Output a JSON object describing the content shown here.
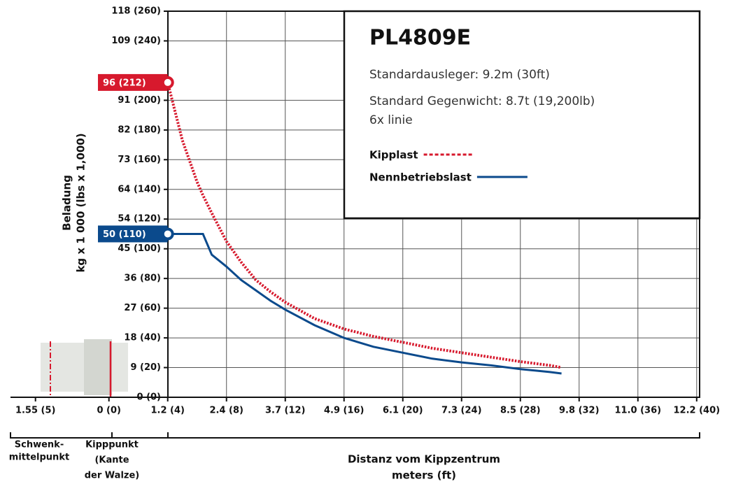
{
  "chart_data": {
    "type": "line",
    "title": "PL4809E",
    "subtitle": [
      "Standardausleger: 9.2m (30ft)",
      "Standard Gegenwicht: 8.7t (19,200lb)",
      "6x linie"
    ],
    "x_label": [
      "Distanz vom Kippzentrum",
      "meters (ft)"
    ],
    "y_label": [
      "Beladung",
      "kg x 1 000 (lbs x 1,000)"
    ],
    "annotations": [
      [
        "Schwenk-",
        "mittelpunkt"
      ],
      [
        "Kipppunkt",
        "(Kante",
        "der Walze)"
      ]
    ],
    "x": [
      4,
      5,
      6,
      6.4,
      7,
      8,
      9,
      10,
      11,
      12,
      14,
      16,
      18,
      20,
      22,
      24,
      26,
      28,
      30,
      30.8
    ],
    "series": [
      {
        "name": "Kipplast",
        "color": "#d7192d",
        "dash": "dotted",
        "values": [
          212,
          173,
          145,
          136,
          124,
          105,
          91,
          79,
          71,
          64,
          53,
          46,
          41,
          37,
          33,
          30,
          27,
          24,
          21.5,
          20
        ],
        "value_labels": [
          "96 (212)",
          null,
          null,
          null,
          null,
          null,
          null,
          null,
          null,
          null,
          null,
          null,
          null,
          null,
          null,
          null,
          null,
          null,
          null,
          null
        ]
      },
      {
        "name": "Nennbetriebslast",
        "color": "#0b4a8c",
        "dash": "solid",
        "values": [
          110,
          110,
          110,
          110,
          96,
          88,
          79,
          72,
          65,
          59,
          48.5,
          40,
          34,
          30,
          26,
          23.5,
          21.5,
          19,
          17,
          16
        ],
        "value_labels": [
          "50 (110)",
          null,
          null,
          null,
          null,
          null,
          null,
          null,
          null,
          null,
          null,
          null,
          null,
          null,
          null,
          null,
          null,
          null,
          null,
          null
        ]
      }
    ],
    "xlim": [
      -6.7,
      40.2
    ],
    "xticks": [
      {
        "value": -5,
        "label": "1.55 (5)"
      },
      {
        "value": 0,
        "label": "0 (0)"
      },
      {
        "value": 4,
        "label": "1.2 (4)"
      },
      {
        "value": 8,
        "label": "2.4 (8)"
      },
      {
        "value": 12,
        "label": "3.7 (12)"
      },
      {
        "value": 16,
        "label": "4.9 (16)"
      },
      {
        "value": 20,
        "label": "6.1 (20)"
      },
      {
        "value": 24,
        "label": "7.3 (24)"
      },
      {
        "value": 28,
        "label": "8.5 (28)"
      },
      {
        "value": 32,
        "label": "9.8 (32)"
      },
      {
        "value": 36,
        "label": "11.0 (36)"
      },
      {
        "value": 40,
        "label": "12.2 (40)"
      }
    ],
    "ylim": [
      0,
      260
    ],
    "yticks": [
      {
        "value": 0,
        "label": "0 (0)"
      },
      {
        "value": 20,
        "label": "9 (20)"
      },
      {
        "value": 40,
        "label": "18 (40)"
      },
      {
        "value": 60,
        "label": "27 (60)"
      },
      {
        "value": 80,
        "label": "36 (80)"
      },
      {
        "value": 100,
        "label": "45 (100)"
      },
      {
        "value": 120,
        "label": "54 (120)"
      },
      {
        "value": 140,
        "label": "64 (140)"
      },
      {
        "value": 160,
        "label": "73 (160)"
      },
      {
        "value": 180,
        "label": "82 (180)"
      },
      {
        "value": 200,
        "label": "91 (200)"
      },
      {
        "value": 240,
        "label": "109 (240)"
      },
      {
        "value": 260,
        "label": "118 (260)"
      }
    ],
    "grid": true
  }
}
